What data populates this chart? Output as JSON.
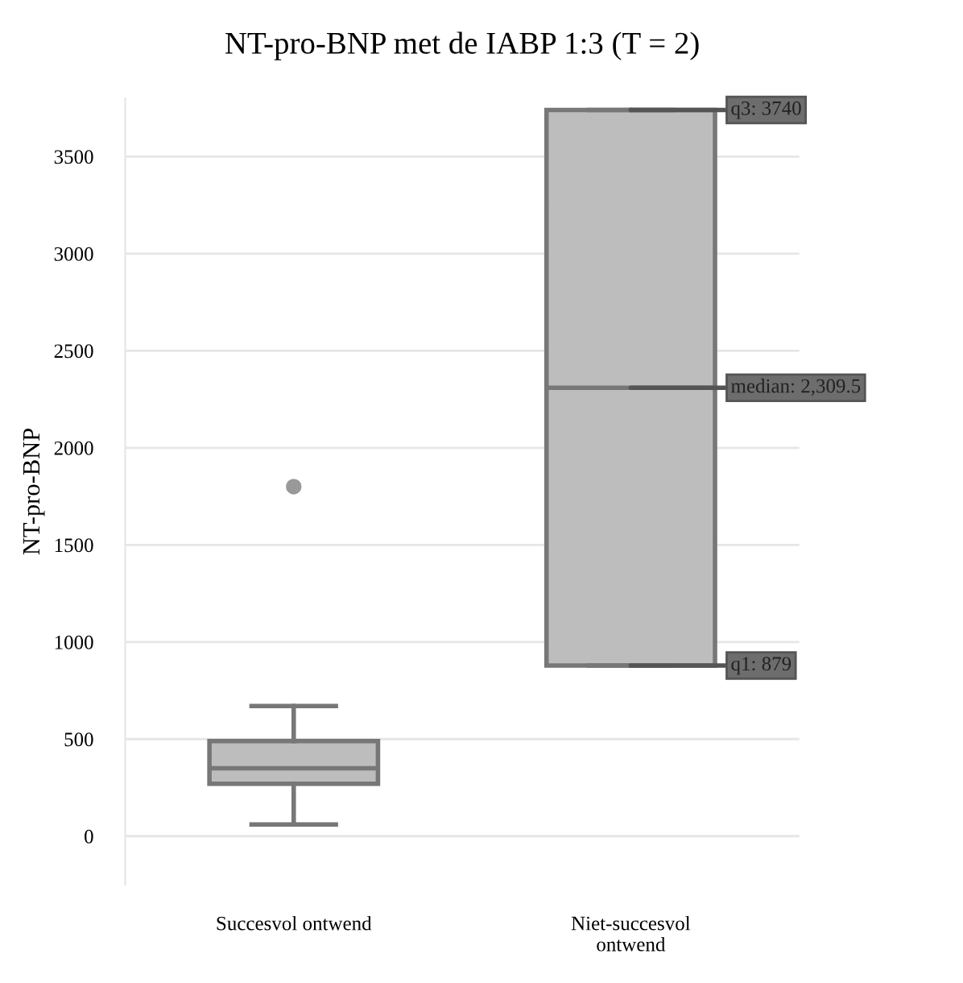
{
  "chart_data": {
    "type": "box",
    "title": "NT-pro-BNP met de IABP 1:3 (T = 2)",
    "ylabel": "NT-pro-BNP",
    "categories": [
      "Succesvol ontwend",
      "Niet-succesvol\nontwend"
    ],
    "series": [
      {
        "color": "#bdbdbd",
        "boxes": [
          {
            "low": 60,
            "q1": 270,
            "median": 350,
            "q3": 490,
            "high": 670,
            "outliers": [
              1800
            ]
          },
          {
            "low": 879,
            "q1": 879,
            "median": 2309.5,
            "q3": 3740,
            "high": 3740
          }
        ]
      }
    ],
    "annotations": [
      {
        "text": "q3: 3740",
        "x": "Niet-succesvol\nontwend",
        "y": 3740
      },
      {
        "text": "median: 2,309.5",
        "x": "Niet-succesvol\nontwend",
        "y": 2309.5
      },
      {
        "text": "q1: 879",
        "x": "Niet-succesvol\nontwend",
        "y": 879
      }
    ],
    "ylim": [
      -250,
      3800
    ],
    "yticks": [
      0,
      500,
      1000,
      1500,
      2000,
      2500,
      3000,
      3500
    ],
    "grid": "y"
  }
}
